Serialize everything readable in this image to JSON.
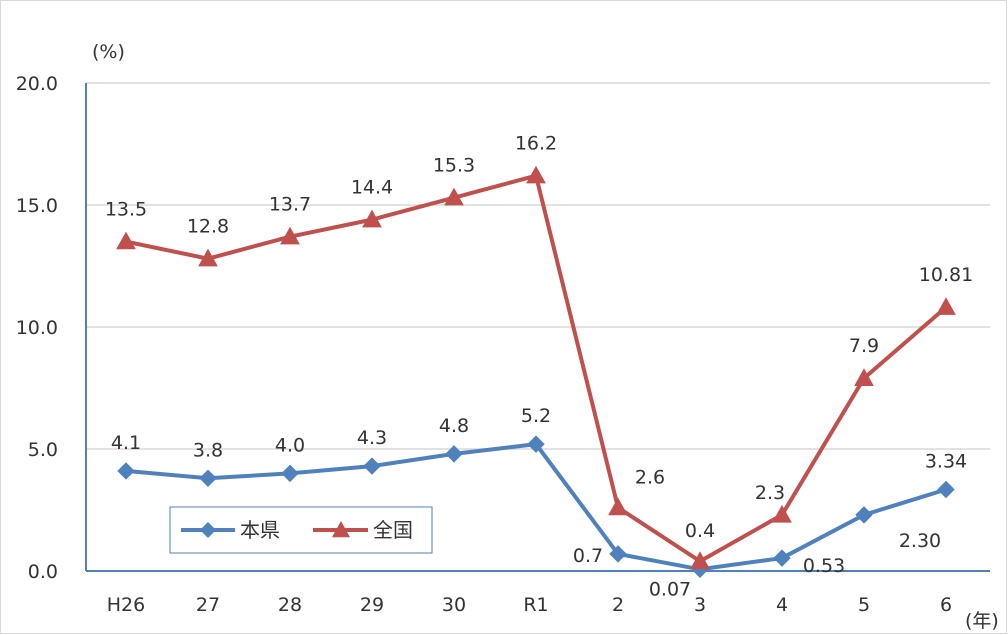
{
  "chart_data": {
    "type": "line",
    "categories": [
      "H26",
      "27",
      "28",
      "29",
      "30",
      "R1",
      "2",
      "3",
      "4",
      "5",
      "6"
    ],
    "series": [
      {
        "name": "本県",
        "color": "#4f81bd",
        "marker": "diamond",
        "values": [
          4.1,
          3.8,
          4.0,
          4.3,
          4.8,
          5.2,
          0.7,
          0.07,
          0.53,
          2.3,
          3.34
        ],
        "labels": [
          "4.1",
          "3.8",
          "4.0",
          "4.3",
          "4.8",
          "5.2",
          "0.7",
          "0.07",
          "0.53",
          "2.30",
          "3.34"
        ]
      },
      {
        "name": "全国",
        "color": "#c0504d",
        "marker": "triangle",
        "values": [
          13.5,
          12.8,
          13.7,
          14.4,
          15.3,
          16.2,
          2.6,
          0.4,
          2.3,
          7.9,
          10.81
        ],
        "labels": [
          "13.5",
          "12.8",
          "13.7",
          "14.4",
          "15.3",
          "16.2",
          "2.6",
          "0.4",
          "2.3",
          "7.9",
          "10.81"
        ]
      }
    ],
    "y_unit_label": "(%)",
    "x_unit_label": "(年)",
    "ylim": [
      0,
      20
    ],
    "yticks": [
      0,
      5,
      10,
      15,
      20
    ],
    "ytick_labels": [
      "0.0",
      "5.0",
      "10.0",
      "15.0",
      "20.0"
    ],
    "grid": true,
    "legend": "bottom-left",
    "gridline_color": "#d9d9d9",
    "axis_color": "#4f81bd"
  }
}
